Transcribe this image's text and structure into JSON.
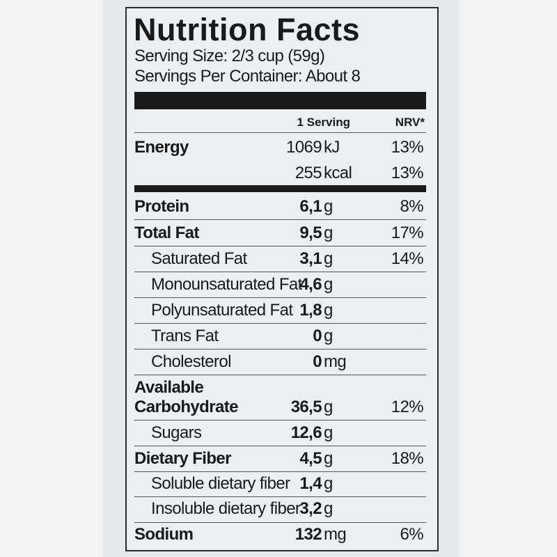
{
  "title": "Nutrition Facts",
  "serving_size": "Serving Size: 2/3 cup (59g)",
  "servings_per_container": "Servings Per Container: About 8",
  "header": {
    "amount": "1 Serving",
    "nrv": "NRV*"
  },
  "rows": [
    {
      "label": "Energy",
      "amount": "1069",
      "unit": "kJ",
      "nrv": "13%"
    },
    {
      "amount": "255",
      "unit": "kcal",
      "nrv": "13%"
    },
    {
      "label": "Protein",
      "amount": "6,1",
      "unit": "g",
      "nrv": "8%"
    },
    {
      "label": "Total Fat",
      "amount": "9,5",
      "unit": "g",
      "nrv": "17%"
    },
    {
      "label": "Saturated Fat",
      "amount": "3,1",
      "unit": "g",
      "nrv": "14%"
    },
    {
      "label": "Monounsaturated Fat",
      "amount": "4,6",
      "unit": "g"
    },
    {
      "label": "Polyunsaturated Fat",
      "amount": "1,8",
      "unit": "g"
    },
    {
      "label": "Trans Fat",
      "amount": "0",
      "unit": "g"
    },
    {
      "label": "Cholesterol",
      "amount": "0",
      "unit": "mg"
    },
    {
      "label": "Available Carbohydrate",
      "amount": "36,5",
      "unit": "g",
      "nrv": "12%"
    },
    {
      "label": "Sugars",
      "amount": "12,6",
      "unit": "g"
    },
    {
      "label": "Dietary Fiber",
      "amount": "4,5",
      "unit": "g",
      "nrv": "18%"
    },
    {
      "label": "Soluble dietary fiber",
      "amount": "1,4",
      "unit": "g"
    },
    {
      "label": "Insoluble dietary fiber",
      "amount": "3,2",
      "unit": "g"
    },
    {
      "label": "Sodium",
      "amount": "132",
      "unit": "mg",
      "nrv": "6%"
    }
  ]
}
